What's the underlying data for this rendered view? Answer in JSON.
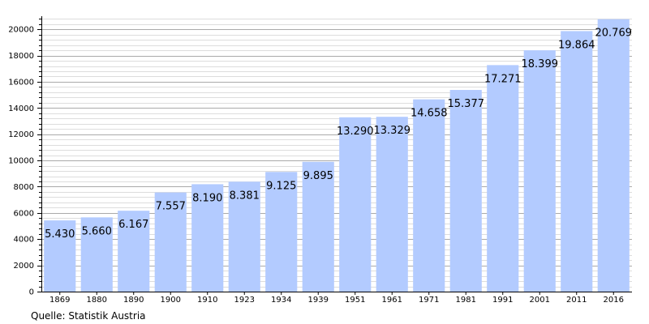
{
  "chart_data": {
    "type": "bar",
    "categories": [
      "1869",
      "1880",
      "1890",
      "1900",
      "1910",
      "1923",
      "1934",
      "1939",
      "1951",
      "1961",
      "1971",
      "1981",
      "1991",
      "2001",
      "2011",
      "2016"
    ],
    "values": [
      5430,
      5660,
      6167,
      7557,
      8190,
      8381,
      9125,
      9895,
      13290,
      13329,
      14658,
      15377,
      17271,
      18399,
      19864,
      20769
    ],
    "value_labels": [
      "5.430",
      "5.660",
      "6.167",
      "7.557",
      "8.190",
      "8.381",
      "9.125",
      "9.895",
      "13.290",
      "13.329",
      "14.658",
      "15.377",
      "17.271",
      "18.399",
      "19.864",
      "20.769"
    ],
    "y_ticks": [
      0,
      2000,
      4000,
      6000,
      8000,
      10000,
      12000,
      14000,
      16000,
      18000,
      20000
    ],
    "ylim": [
      0,
      21000
    ],
    "grid": true,
    "bar_color": "#b3cbff",
    "grid_color": "#aaaaaa",
    "source": "Quelle: Statistik Austria"
  }
}
